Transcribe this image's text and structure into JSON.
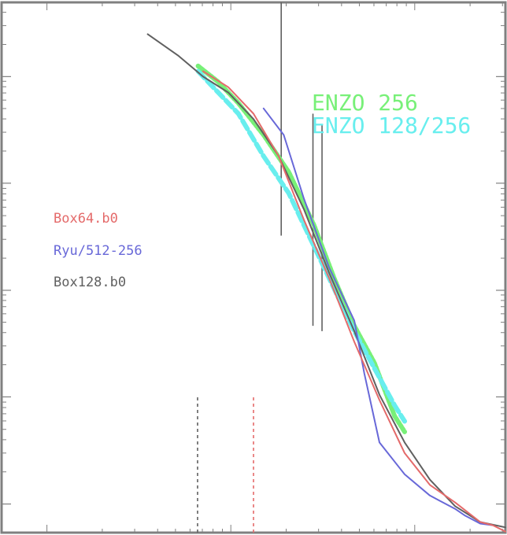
{
  "chart_data": {
    "type": "line",
    "title": "",
    "xlabel": "",
    "ylabel": "",
    "xscale": "log",
    "yscale": "log",
    "xlim": [
      0,
      1
    ],
    "ylim": [
      0,
      1
    ],
    "grid": false,
    "legend": "left",
    "colors": {
      "frame": "#808080",
      "box64": "#e46a6a",
      "ryu": "#6868d8",
      "box128": "#606060",
      "enzo256": "#78f078",
      "enzo128": "#68eeee"
    },
    "series": [
      {
        "name": "Box64.b0",
        "color": "#e46a6a",
        "x": [
          0.4,
          0.45,
          0.5,
          0.55,
          0.6,
          0.65,
          0.7,
          0.75,
          0.8,
          0.85,
          0.9,
          0.95,
          0.975,
          1.0
        ],
        "y": [
          0.87,
          0.84,
          0.79,
          0.71,
          0.59,
          0.48,
          0.36,
          0.25,
          0.15,
          0.09,
          0.057,
          0.02,
          0.014,
          0.002
        ]
      },
      {
        "name": "Ryu/512-256",
        "color": "#6868d8",
        "x": [
          0.52,
          0.56,
          0.6,
          0.65,
          0.7,
          0.72,
          0.75,
          0.8,
          0.85,
          0.87,
          0.9,
          0.92,
          0.95,
          0.975
        ],
        "y": [
          0.8,
          0.75,
          0.63,
          0.5,
          0.4,
          0.3,
          0.17,
          0.11,
          0.07,
          0.06,
          0.045,
          0.032,
          0.017,
          0.014
        ]
      },
      {
        "name": "Box128.b0",
        "color": "#606060",
        "x": [
          0.29,
          0.35,
          0.4,
          0.45,
          0.5,
          0.55,
          0.6,
          0.65,
          0.7,
          0.75,
          0.8,
          0.85,
          0.9,
          0.95,
          1.0
        ],
        "y": [
          0.94,
          0.9,
          0.86,
          0.83,
          0.78,
          0.71,
          0.61,
          0.49,
          0.38,
          0.26,
          0.17,
          0.1,
          0.05,
          0.02,
          0.01
        ]
      },
      {
        "name": "ENZO 256",
        "label": "ENZO 256",
        "color": "#78f078",
        "x": [
          0.39,
          0.43,
          0.47,
          0.52,
          0.57,
          0.62,
          0.66,
          0.7,
          0.74,
          0.78,
          0.8
        ],
        "y": [
          0.88,
          0.85,
          0.81,
          0.75,
          0.68,
          0.58,
          0.48,
          0.39,
          0.32,
          0.22,
          0.19
        ]
      },
      {
        "name": "ENZO 128/256",
        "label": "ENZO 128/256",
        "color": "#68eeee",
        "x": [
          0.39,
          0.43,
          0.47,
          0.52,
          0.57,
          0.62,
          0.66,
          0.7,
          0.74,
          0.78,
          0.8
        ],
        "y": [
          0.87,
          0.83,
          0.79,
          0.71,
          0.64,
          0.54,
          0.46,
          0.38,
          0.31,
          0.24,
          0.21
        ]
      }
    ],
    "vlines": [
      {
        "x": 0.555,
        "y": [
          0.56,
          1.0
        ],
        "color": "#606060",
        "style": "solid"
      },
      {
        "x": 0.618,
        "y": [
          0.39,
          0.79
        ],
        "color": "#606060",
        "style": "solid"
      },
      {
        "x": 0.636,
        "y": [
          0.38,
          0.77
        ],
        "color": "#606060",
        "style": "solid"
      },
      {
        "x": 0.389,
        "y": [
          0.0,
          0.26
        ],
        "color": "#606060",
        "style": "dashed"
      },
      {
        "x": 0.5,
        "y": [
          0.0,
          0.26
        ],
        "color": "#e46a6a",
        "style": "dashed"
      }
    ]
  }
}
